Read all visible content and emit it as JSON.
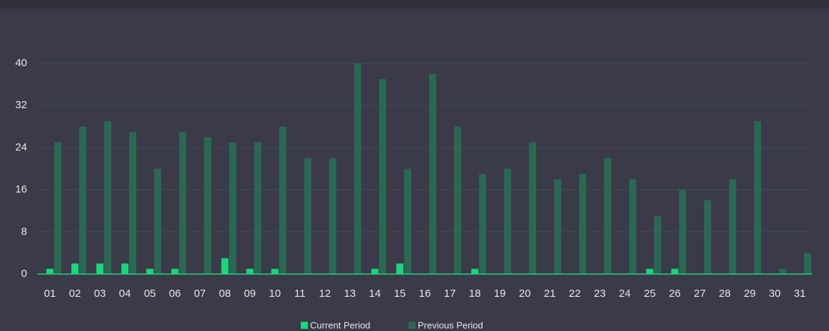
{
  "chart_data": {
    "type": "bar",
    "categories": [
      "01",
      "02",
      "03",
      "04",
      "05",
      "06",
      "07",
      "08",
      "09",
      "10",
      "11",
      "12",
      "13",
      "14",
      "15",
      "16",
      "17",
      "18",
      "19",
      "20",
      "21",
      "22",
      "23",
      "24",
      "25",
      "26",
      "27",
      "28",
      "29",
      "30",
      "31"
    ],
    "series": [
      {
        "name": "Current Period",
        "color": "#1dd47f",
        "values": [
          1,
          2,
          2,
          2,
          1,
          1,
          0,
          3,
          1,
          1,
          0,
          0,
          0,
          1,
          2,
          0,
          0,
          1,
          0,
          0,
          0,
          0,
          0,
          0,
          1,
          1,
          0,
          0,
          0,
          0,
          0
        ]
      },
      {
        "name": "Previous Period",
        "color": "#2b6854",
        "values": [
          25,
          28,
          29,
          27,
          20,
          27,
          26,
          25,
          25,
          28,
          22,
          22,
          40,
          37,
          20,
          38,
          28,
          19,
          20,
          25,
          18,
          19,
          22,
          18,
          11,
          16,
          14,
          18,
          29,
          1,
          4
        ]
      }
    ],
    "ylim": [
      0,
      40
    ],
    "yticks": [
      0,
      8,
      16,
      24,
      32,
      40
    ],
    "grid": true
  }
}
